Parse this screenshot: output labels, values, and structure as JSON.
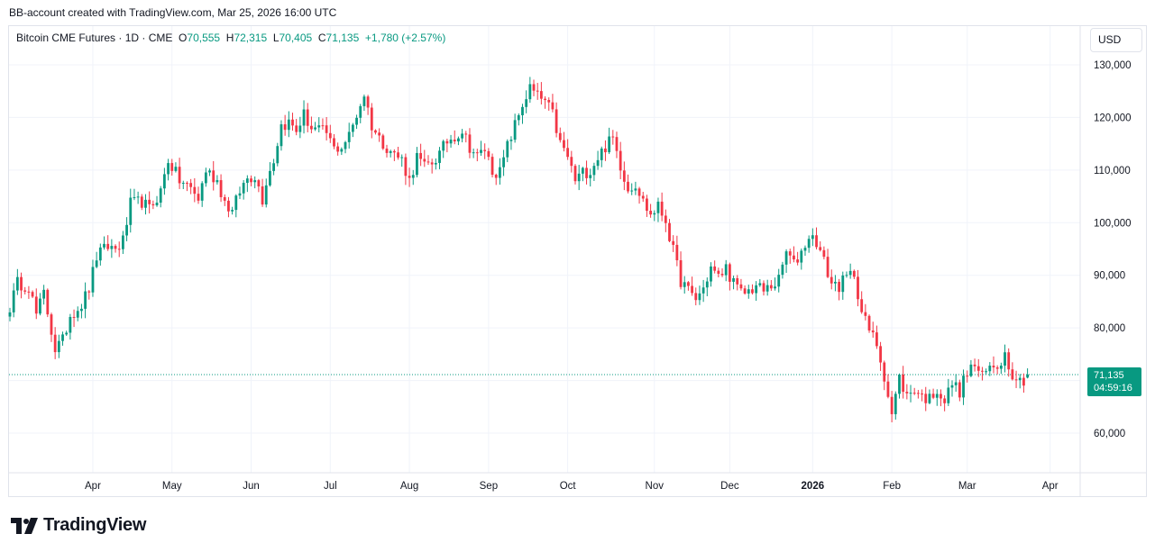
{
  "header": {
    "credit": "BB-account created with TradingView.com, Mar 25, 2026 16:00 UTC"
  },
  "legend": {
    "symbol": "Bitcoin CME Futures · 1D · CME",
    "o_label": "O",
    "o_value": "70,555",
    "h_label": "H",
    "h_value": "72,315",
    "l_label": "L",
    "l_value": "70,405",
    "c_label": "C",
    "c_value": "71,135",
    "change": "+1,780 (+2.57%)"
  },
  "currency": "USD",
  "price_tag": {
    "price": "71,135",
    "countdown": "04:59:16"
  },
  "footer": {
    "brand": "TradingView"
  },
  "colors": {
    "up": "#089981",
    "down": "#f23645",
    "grid": "#f0f3fa",
    "text": "#131722"
  },
  "chart_data": {
    "type": "candlestick",
    "title": "Bitcoin CME Futures · 1D · CME",
    "ylim": [
      53000,
      134000
    ],
    "y_ticks": [
      60000,
      70000,
      80000,
      90000,
      100000,
      110000,
      120000,
      130000
    ],
    "y_tick_labels": [
      "60,000",
      "70,000",
      "80,000",
      "90,000",
      "100,000",
      "110,000",
      "120,000",
      "130,000"
    ],
    "x_ticks": [
      {
        "label": "Apr",
        "idx": 22,
        "bold": false
      },
      {
        "label": "May",
        "idx": 43,
        "bold": false
      },
      {
        "label": "Jun",
        "idx": 64,
        "bold": false
      },
      {
        "label": "Jul",
        "idx": 85,
        "bold": false
      },
      {
        "label": "Aug",
        "idx": 106,
        "bold": false
      },
      {
        "label": "Sep",
        "idx": 127,
        "bold": false
      },
      {
        "label": "Oct",
        "idx": 148,
        "bold": false
      },
      {
        "label": "Nov",
        "idx": 171,
        "bold": false
      },
      {
        "label": "Dec",
        "idx": 191,
        "bold": false
      },
      {
        "label": "2026",
        "idx": 213,
        "bold": true
      },
      {
        "label": "Feb",
        "idx": 234,
        "bold": false
      },
      {
        "label": "Mar",
        "idx": 254,
        "bold": false
      },
      {
        "label": "Apr",
        "idx": 276,
        "bold": false
      }
    ],
    "last_price": 71135,
    "anchors": [
      [
        0,
        84000
      ],
      [
        2,
        88500
      ],
      [
        5,
        88000
      ],
      [
        7,
        82500
      ],
      [
        9,
        86500
      ],
      [
        12,
        76000
      ],
      [
        14,
        77500
      ],
      [
        16,
        82500
      ],
      [
        19,
        84500
      ],
      [
        21,
        87500
      ],
      [
        23,
        93500
      ],
      [
        26,
        95500
      ],
      [
        28,
        95000
      ],
      [
        30,
        96500
      ],
      [
        32,
        103500
      ],
      [
        35,
        104000
      ],
      [
        37,
        102500
      ],
      [
        40,
        106000
      ],
      [
        42,
        112000
      ],
      [
        45,
        108000
      ],
      [
        48,
        106500
      ],
      [
        50,
        104500
      ],
      [
        52,
        110000
      ],
      [
        55,
        108000
      ],
      [
        57,
        104000
      ],
      [
        59,
        102000
      ],
      [
        61,
        106000
      ],
      [
        63,
        108500
      ],
      [
        65,
        109000
      ],
      [
        67,
        104500
      ],
      [
        68,
        108000
      ],
      [
        70,
        112000
      ],
      [
        72,
        118500
      ],
      [
        74,
        119000
      ],
      [
        76,
        117500
      ],
      [
        78,
        120500
      ],
      [
        80,
        118000
      ],
      [
        82,
        117500
      ],
      [
        84,
        117000
      ],
      [
        86,
        114000
      ],
      [
        88,
        114500
      ],
      [
        90,
        116500
      ],
      [
        92,
        120500
      ],
      [
        94,
        124500
      ],
      [
        96,
        118500
      ],
      [
        98,
        116000
      ],
      [
        100,
        114500
      ],
      [
        102,
        113000
      ],
      [
        104,
        112000
      ],
      [
        106,
        108000
      ],
      [
        108,
        112500
      ],
      [
        110,
        110500
      ],
      [
        112,
        111500
      ],
      [
        114,
        113000
      ],
      [
        116,
        115500
      ],
      [
        118,
        116500
      ],
      [
        120,
        117500
      ],
      [
        122,
        114500
      ],
      [
        124,
        112500
      ],
      [
        126,
        114000
      ],
      [
        128,
        110000
      ],
      [
        130,
        109500
      ],
      [
        132,
        114500
      ],
      [
        134,
        118500
      ],
      [
        136,
        122500
      ],
      [
        138,
        125500
      ],
      [
        140,
        124000
      ],
      [
        142,
        123000
      ],
      [
        144,
        120500
      ],
      [
        146,
        115000
      ],
      [
        148,
        112500
      ],
      [
        150,
        108000
      ],
      [
        152,
        109500
      ],
      [
        154,
        110000
      ],
      [
        156,
        112500
      ],
      [
        158,
        114500
      ],
      [
        160,
        116000
      ],
      [
        162,
        111000
      ],
      [
        164,
        106500
      ],
      [
        166,
        107500
      ],
      [
        168,
        104000
      ],
      [
        170,
        101500
      ],
      [
        172,
        103000
      ],
      [
        174,
        100500
      ],
      [
        176,
        94500
      ],
      [
        178,
        89000
      ],
      [
        180,
        87000
      ],
      [
        182,
        85500
      ],
      [
        184,
        87500
      ],
      [
        186,
        91500
      ],
      [
        188,
        89500
      ],
      [
        190,
        91500
      ],
      [
        192,
        88500
      ],
      [
        194,
        86500
      ],
      [
        196,
        87000
      ],
      [
        198,
        88000
      ],
      [
        200,
        87000
      ],
      [
        202,
        88000
      ],
      [
        204,
        89000
      ],
      [
        206,
        94500
      ],
      [
        208,
        92000
      ],
      [
        210,
        94500
      ],
      [
        212,
        97500
      ],
      [
        214,
        96500
      ],
      [
        216,
        92500
      ],
      [
        218,
        88500
      ],
      [
        220,
        88000
      ],
      [
        222,
        89500
      ],
      [
        224,
        90500
      ],
      [
        226,
        83000
      ],
      [
        228,
        79500
      ],
      [
        230,
        77000
      ],
      [
        232,
        71000
      ],
      [
        234,
        63500
      ],
      [
        236,
        70500
      ],
      [
        238,
        67000
      ],
      [
        240,
        68500
      ],
      [
        242,
        67000
      ],
      [
        244,
        66500
      ],
      [
        246,
        68500
      ],
      [
        248,
        66000
      ],
      [
        250,
        69500
      ],
      [
        252,
        68000
      ],
      [
        254,
        71500
      ],
      [
        256,
        73000
      ],
      [
        258,
        70500
      ],
      [
        260,
        72500
      ],
      [
        262,
        73000
      ],
      [
        264,
        75000
      ],
      [
        266,
        71500
      ],
      [
        268,
        70000
      ],
      [
        270,
        70555
      ]
    ],
    "last_candle": {
      "o": 70555,
      "h": 72315,
      "l": 70405,
      "c": 71135
    }
  }
}
